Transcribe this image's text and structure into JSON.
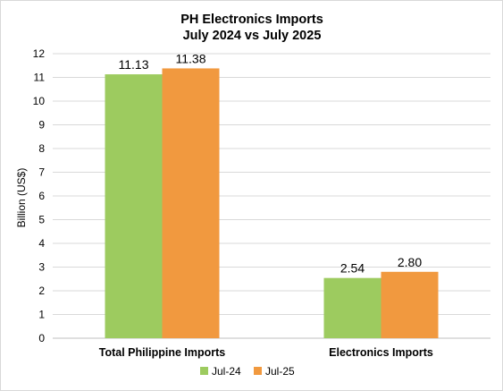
{
  "chart_data": {
    "type": "bar",
    "title_lines": [
      "PH Electronics Imports",
      "July 2024 vs July 2025"
    ],
    "ylabel": "Billion (US$)",
    "xlabel": "",
    "ylim": [
      0,
      12
    ],
    "yticks": [
      "0",
      "1",
      "2",
      "3",
      "4",
      "5",
      "6",
      "7",
      "8",
      "9",
      "10",
      "11",
      "12"
    ],
    "categories": [
      "Total Philippine Imports",
      "Electronics Imports"
    ],
    "series": [
      {
        "name": "Jul-24",
        "color": "#9dcb5f",
        "values": [
          11.13,
          2.54
        ],
        "labels": [
          "11.13",
          "2.54"
        ]
      },
      {
        "name": "Jul-25",
        "color": "#f1993f",
        "values": [
          11.38,
          2.8
        ],
        "labels": [
          "11.38",
          "2.80"
        ]
      }
    ],
    "grid": true,
    "legend_position": "bottom"
  }
}
